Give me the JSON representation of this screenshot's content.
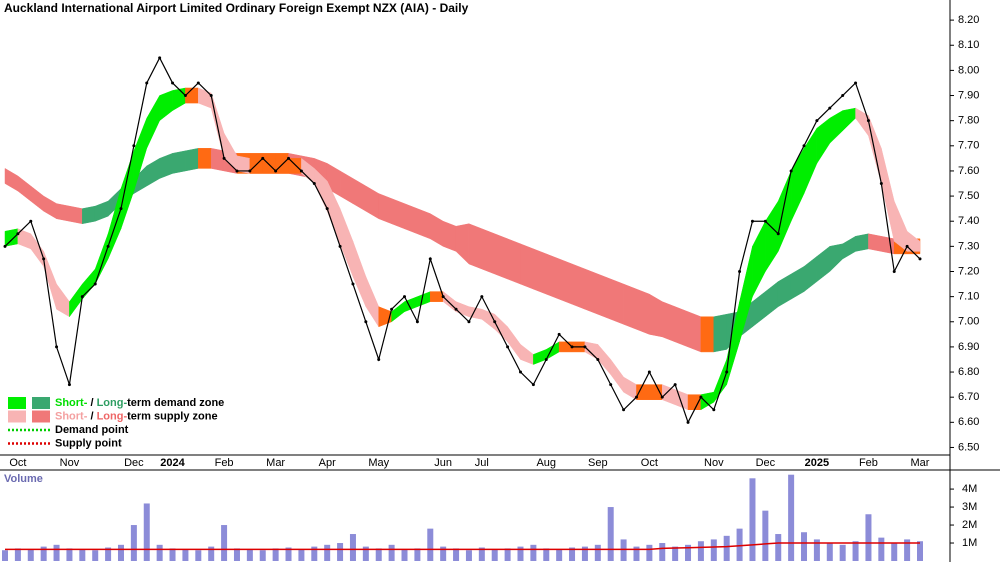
{
  "chart_data": [
    {
      "type": "line",
      "title": "Auckland International Airport Limited Ordinary Foreign Exempt NZX (AIA) - Daily",
      "categories": [
        null,
        "Oct",
        null,
        null,
        null,
        "Nov",
        null,
        null,
        null,
        null,
        "Dec",
        null,
        null,
        "2024",
        null,
        null,
        null,
        "Feb",
        null,
        null,
        null,
        "Mar",
        null,
        null,
        null,
        "Apr",
        null,
        null,
        null,
        "May",
        null,
        null,
        null,
        null,
        "Jun",
        null,
        null,
        "Jul",
        null,
        null,
        null,
        null,
        "Aug",
        null,
        null,
        null,
        "Sep",
        null,
        null,
        null,
        "Oct",
        null,
        null,
        null,
        null,
        "Nov",
        null,
        null,
        null,
        "Dec",
        null,
        null,
        null,
        "2025",
        null,
        null,
        null,
        "Feb",
        null,
        null,
        null,
        "Mar"
      ],
      "values": [
        7.3,
        7.35,
        7.4,
        7.25,
        6.9,
        6.75,
        7.1,
        7.15,
        7.3,
        7.45,
        7.7,
        7.95,
        8.05,
        7.95,
        7.9,
        7.95,
        7.9,
        7.65,
        7.6,
        7.6,
        7.65,
        7.6,
        7.65,
        7.6,
        7.55,
        7.45,
        7.3,
        7.15,
        7.0,
        6.85,
        7.05,
        7.1,
        7.0,
        7.25,
        7.1,
        7.05,
        7.0,
        7.1,
        7.0,
        6.9,
        6.8,
        6.75,
        6.85,
        6.95,
        6.9,
        6.9,
        6.85,
        6.75,
        6.65,
        6.7,
        6.8,
        6.7,
        6.75,
        6.6,
        6.7,
        6.65,
        6.8,
        7.2,
        7.4,
        7.4,
        7.35,
        7.6,
        7.7,
        7.8,
        7.85,
        7.9,
        7.95,
        7.8,
        7.55,
        7.2,
        7.3,
        7.25
      ],
      "color": "#000000",
      "short_band": {
        "demand_color": "#00ee00",
        "supply_color": "#f8b4b4",
        "lower": [
          7.3,
          7.31,
          7.29,
          7.22,
          7.05,
          7.02,
          7.09,
          7.15,
          7.25,
          7.37,
          7.52,
          7.69,
          7.8,
          7.84,
          7.87,
          7.87,
          7.85,
          7.65,
          7.6,
          7.59,
          7.59,
          7.59,
          7.59,
          7.59,
          7.55,
          7.44,
          7.31,
          7.18,
          7.06,
          6.98,
          7.0,
          7.04,
          7.06,
          7.08,
          7.08,
          7.04,
          7.02,
          7.01,
          6.97,
          6.92,
          6.85,
          6.83,
          6.85,
          6.88,
          6.88,
          6.88,
          6.85,
          6.79,
          6.72,
          6.69,
          6.69,
          6.69,
          6.67,
          6.65,
          6.65,
          6.68,
          6.75,
          6.92,
          7.1,
          7.2,
          7.28,
          7.4,
          7.51,
          7.63,
          7.71,
          7.76,
          7.81,
          7.74,
          7.55,
          7.32,
          7.28,
          7.28
        ],
        "upper": [
          7.36,
          7.37,
          7.35,
          7.28,
          7.15,
          7.08,
          7.15,
          7.21,
          7.35,
          7.53,
          7.68,
          7.81,
          7.9,
          7.92,
          7.93,
          7.93,
          7.91,
          7.75,
          7.66,
          7.65,
          7.65,
          7.65,
          7.65,
          7.65,
          7.61,
          7.56,
          7.45,
          7.32,
          7.18,
          7.06,
          7.04,
          7.08,
          7.1,
          7.12,
          7.12,
          7.08,
          7.06,
          7.05,
          7.03,
          6.98,
          6.91,
          6.87,
          6.89,
          6.92,
          6.92,
          6.92,
          6.91,
          6.85,
          6.78,
          6.75,
          6.75,
          6.75,
          6.73,
          6.71,
          6.71,
          6.72,
          6.85,
          7.08,
          7.3,
          7.4,
          7.48,
          7.6,
          7.69,
          7.77,
          7.81,
          7.84,
          7.85,
          7.82,
          7.69,
          7.48,
          7.36,
          7.32
        ]
      },
      "long_band": {
        "demand_color": "#3aa870",
        "supply_color": "#f07878",
        "lower": [
          7.55,
          7.52,
          7.48,
          7.44,
          7.41,
          7.4,
          7.39,
          7.4,
          7.42,
          7.47,
          7.51,
          7.54,
          7.57,
          7.59,
          7.6,
          7.61,
          7.61,
          7.6,
          7.59,
          7.59,
          7.59,
          7.59,
          7.59,
          7.58,
          7.57,
          7.53,
          7.5,
          7.47,
          7.44,
          7.41,
          7.39,
          7.37,
          7.35,
          7.33,
          7.3,
          7.28,
          7.23,
          7.21,
          7.19,
          7.17,
          7.15,
          7.13,
          7.11,
          7.09,
          7.07,
          7.05,
          7.03,
          7.01,
          6.99,
          6.97,
          6.95,
          6.94,
          6.92,
          6.9,
          6.88,
          6.88,
          6.89,
          6.94,
          6.98,
          7.02,
          7.06,
          7.09,
          7.12,
          7.16,
          7.2,
          7.25,
          7.28,
          7.29,
          7.28,
          7.27,
          7.27,
          7.27
        ],
        "upper": [
          7.61,
          7.58,
          7.54,
          7.5,
          7.47,
          7.46,
          7.45,
          7.46,
          7.48,
          7.53,
          7.57,
          7.62,
          7.65,
          7.67,
          7.68,
          7.69,
          7.69,
          7.68,
          7.67,
          7.67,
          7.67,
          7.67,
          7.67,
          7.66,
          7.65,
          7.63,
          7.6,
          7.57,
          7.54,
          7.51,
          7.49,
          7.47,
          7.45,
          7.43,
          7.4,
          7.38,
          7.39,
          7.37,
          7.35,
          7.33,
          7.31,
          7.29,
          7.27,
          7.25,
          7.23,
          7.21,
          7.19,
          7.17,
          7.15,
          7.13,
          7.11,
          7.08,
          7.06,
          7.04,
          7.02,
          7.02,
          7.03,
          7.04,
          7.08,
          7.12,
          7.16,
          7.19,
          7.22,
          7.26,
          7.3,
          7.31,
          7.34,
          7.35,
          7.34,
          7.33,
          7.33,
          7.33
        ]
      },
      "flat_color": "#ff6a13",
      "ylim": [
        6.47,
        8.28
      ],
      "yticks": [
        {
          "value": 6.5,
          "label": "6.50"
        },
        {
          "value": 6.6,
          "label": "6.60"
        },
        {
          "value": 6.7,
          "label": "6.70"
        },
        {
          "value": 6.8,
          "label": "6.80"
        },
        {
          "value": 6.9,
          "label": "6.90"
        },
        {
          "value": 7.0,
          "label": "7.00"
        },
        {
          "value": 7.1,
          "label": "7.10"
        },
        {
          "value": 7.2,
          "label": "7.20"
        },
        {
          "value": 7.3,
          "label": "7.30"
        },
        {
          "value": 7.4,
          "label": "7.40"
        },
        {
          "value": 7.5,
          "label": "7.50"
        },
        {
          "value": 7.6,
          "label": "7.60"
        },
        {
          "value": 7.7,
          "label": "7.70"
        },
        {
          "value": 7.8,
          "label": "7.80"
        },
        {
          "value": 7.9,
          "label": "7.90"
        },
        {
          "value": 8.0,
          "label": "8.00"
        },
        {
          "value": 8.1,
          "label": "8.10"
        },
        {
          "value": 8.2,
          "label": "8.20"
        }
      ],
      "legend": [
        {
          "parts": [
            {
              "text": "Short-",
              "color": "#00dd00"
            },
            {
              "text": " / ",
              "color": "#000000"
            },
            {
              "text": "Long-",
              "color": "#2e9e62"
            },
            {
              "text": "term demand zone",
              "color": "#000000"
            }
          ]
        },
        {
          "parts": [
            {
              "text": "Short-",
              "color": "#f4a0a0"
            },
            {
              "text": " / ",
              "color": "#000000"
            },
            {
              "text": "Long-",
              "color": "#ee6666"
            },
            {
              "text": "term supply zone",
              "color": "#000000"
            }
          ]
        },
        {
          "parts": [
            {
              "text": "Demand point",
              "color": "#000000"
            }
          ],
          "line_color": "#00cc00"
        },
        {
          "parts": [
            {
              "text": "Supply point",
              "color": "#000000"
            }
          ],
          "line_color": "#dd0000"
        }
      ]
    },
    {
      "type": "bar",
      "title": "Volume",
      "values": [
        600000,
        700000,
        650000,
        800000,
        900000,
        700000,
        650000,
        600000,
        750000,
        900000,
        2000000,
        3200000,
        900000,
        700000,
        650000,
        600000,
        800000,
        2000000,
        700000,
        650000,
        600000,
        700000,
        750000,
        650000,
        800000,
        900000,
        1000000,
        1500000,
        800000,
        700000,
        900000,
        650000,
        700000,
        1800000,
        800000,
        700000,
        600000,
        750000,
        650000,
        700000,
        800000,
        900000,
        700000,
        650000,
        750000,
        800000,
        900000,
        3000000,
        1200000,
        800000,
        900000,
        1000000,
        800000,
        900000,
        1100000,
        1200000,
        1400000,
        1800000,
        4600000,
        2800000,
        1500000,
        4800000,
        1600000,
        1200000,
        1000000,
        900000,
        1100000,
        2600000,
        1300000,
        1000000,
        1200000,
        1100000
      ],
      "color": "#8c8cd8",
      "average": [
        650000,
        650000,
        650000,
        650000,
        650000,
        650000,
        650000,
        650000,
        650000,
        650000,
        650000,
        650000,
        650000,
        650000,
        650000,
        650000,
        650000,
        650000,
        650000,
        650000,
        650000,
        650000,
        650000,
        650000,
        650000,
        650000,
        650000,
        650000,
        650000,
        650000,
        650000,
        650000,
        650000,
        650000,
        650000,
        650000,
        650000,
        650000,
        650000,
        650000,
        650000,
        650000,
        650000,
        650000,
        650000,
        650000,
        650000,
        650000,
        650000,
        650000,
        650000,
        700000,
        720000,
        740000,
        760000,
        780000,
        800000,
        850000,
        900000,
        950000,
        1000000,
        1000000,
        1000000,
        1000000,
        1000000,
        1000000,
        1000000,
        1000000,
        1000000,
        1000000,
        1000000,
        1000000
      ],
      "average_color": "#dd0000",
      "ylim": [
        0,
        4950000
      ],
      "yticks": [
        {
          "value": 1000000,
          "label": "1M"
        },
        {
          "value": 2000000,
          "label": "2M"
        },
        {
          "value": 3000000,
          "label": "3M"
        },
        {
          "value": 4000000,
          "label": "4M"
        }
      ]
    }
  ]
}
